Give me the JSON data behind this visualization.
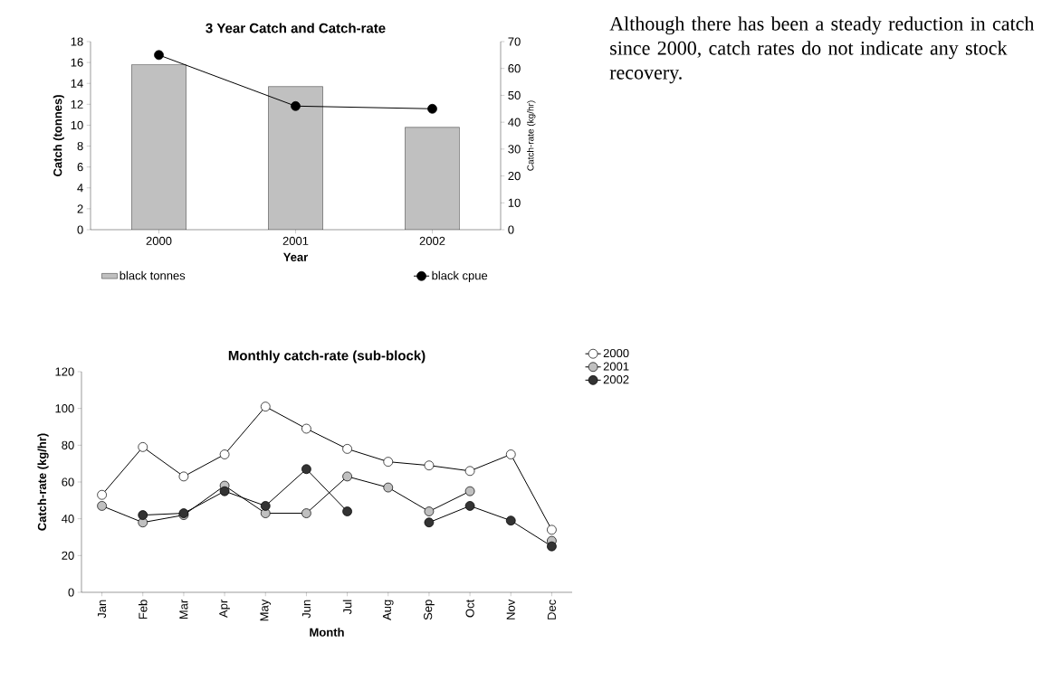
{
  "chart_data": [
    {
      "type": "bar",
      "title": "3 Year Catch and Catch-rate",
      "categories": [
        "2000",
        "2001",
        "2002"
      ],
      "xlabel": "Year",
      "ylabel": "Catch (tonnes)",
      "y2label": "Catch-rate (kg/hr)",
      "ylim": [
        0,
        18
      ],
      "yticks": [
        0,
        2,
        4,
        6,
        8,
        10,
        12,
        14,
        16,
        18
      ],
      "y2lim": [
        0,
        70
      ],
      "y2ticks": [
        0,
        10,
        20,
        30,
        40,
        50,
        60,
        70
      ],
      "legend": "bottom",
      "marker": "circle",
      "series": [
        {
          "name": "black tonnes",
          "color": "#c0c0c0",
          "values": [
            15.8,
            13.7,
            9.8
          ]
        },
        {
          "name": "black cpue",
          "type": "line",
          "axis": "y2",
          "color": "#000000",
          "values": [
            65,
            46,
            45
          ]
        }
      ]
    },
    {
      "type": "line",
      "title": "Monthly catch-rate (sub-block)",
      "categories": [
        "Jan",
        "Feb",
        "Mar",
        "Apr",
        "May",
        "Jun",
        "Jul",
        "Aug",
        "Sep",
        "Oct",
        "Nov",
        "Dec"
      ],
      "xlabel": "Month",
      "ylabel": "Catch-rate (kg/hr)",
      "ylim": [
        0,
        120
      ],
      "yticks": [
        0,
        20,
        40,
        60,
        80,
        100,
        120
      ],
      "legend": "top right",
      "marker": "circle",
      "series": [
        {
          "name": "2000",
          "color": "#ffffff",
          "values": [
            53,
            79,
            63,
            75,
            101,
            89,
            78,
            71,
            69,
            66,
            75,
            34
          ]
        },
        {
          "name": "2001",
          "color": "#c0c0c0",
          "values": [
            47,
            38,
            42,
            58,
            43,
            43,
            63,
            57,
            44,
            55,
            null,
            28
          ]
        },
        {
          "name": "2002",
          "color": "#333333",
          "values": [
            null,
            42,
            43,
            55,
            47,
            67,
            44,
            null,
            38,
            47,
            39,
            25
          ]
        }
      ]
    },
    {
      "type": "other",
      "annotations": [
        "Although there has been a steady reduction in catch since 2000, catch rates do not indicate any stock recovery."
      ]
    }
  ]
}
